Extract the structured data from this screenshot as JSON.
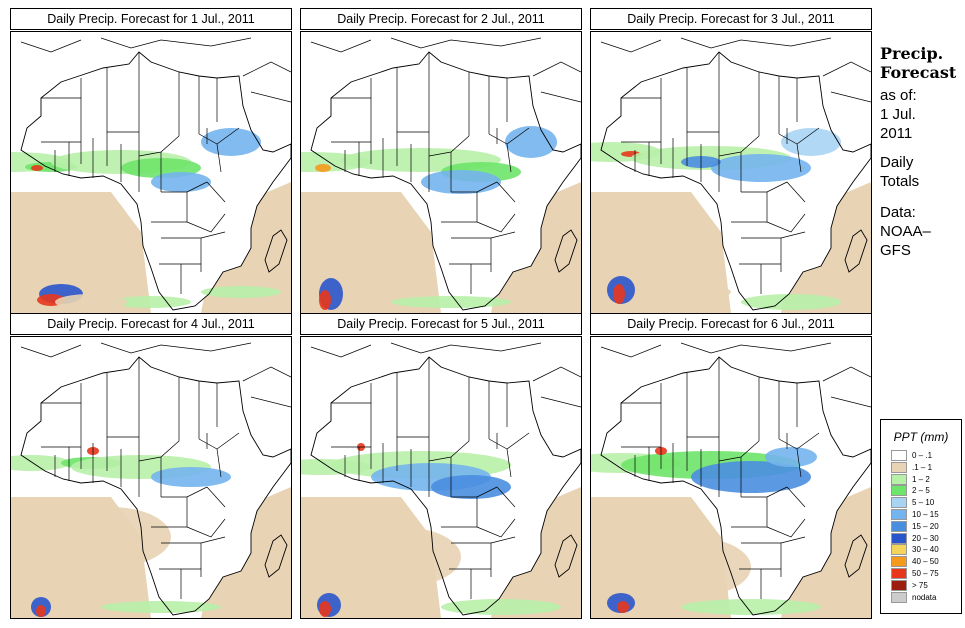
{
  "panels": [
    {
      "title": "Daily Precip. Forecast for  1 Jul., 2011"
    },
    {
      "title": "Daily Precip. Forecast for  2 Jul., 2011"
    },
    {
      "title": "Daily Precip. Forecast for  3 Jul., 2011"
    },
    {
      "title": "Daily Precip. Forecast for  4 Jul., 2011"
    },
    {
      "title": "Daily Precip. Forecast for  5 Jul., 2011"
    },
    {
      "title": "Daily Precip. Forecast for  6 Jul., 2011"
    }
  ],
  "side_info": {
    "heading1": "Precip.",
    "heading2": "Forecast",
    "asof_label": "as of:",
    "asof_day": "1 Jul.",
    "asof_year": "2011",
    "totals_1": "Daily",
    "totals_2": "Totals",
    "data_1": "Data:",
    "data_2": "NOAA–",
    "data_3": "GFS"
  },
  "legend": {
    "title": "PPT (mm)",
    "items": [
      {
        "label": "0 – .1",
        "color": "#ffffff"
      },
      {
        "label": ".1 – 1",
        "color": "#e8d3b4"
      },
      {
        "label": "1 – 2",
        "color": "#b8f0a8"
      },
      {
        "label": "2 – 5",
        "color": "#6ee46a"
      },
      {
        "label": "5 – 10",
        "color": "#a8d4f4"
      },
      {
        "label": "10 – 15",
        "color": "#74b4ee"
      },
      {
        "label": "15 – 20",
        "color": "#4a8ee0"
      },
      {
        "label": "20 – 30",
        "color": "#2a56cc"
      },
      {
        "label": "30 – 40",
        "color": "#f4d45a"
      },
      {
        "label": "40 – 50",
        "color": "#f49a1c"
      },
      {
        "label": "50 – 75",
        "color": "#e8361c"
      },
      {
        "label": "> 75",
        "color": "#9c1e10"
      },
      {
        "label": "nodata",
        "color": "#cccccc"
      }
    ]
  }
}
